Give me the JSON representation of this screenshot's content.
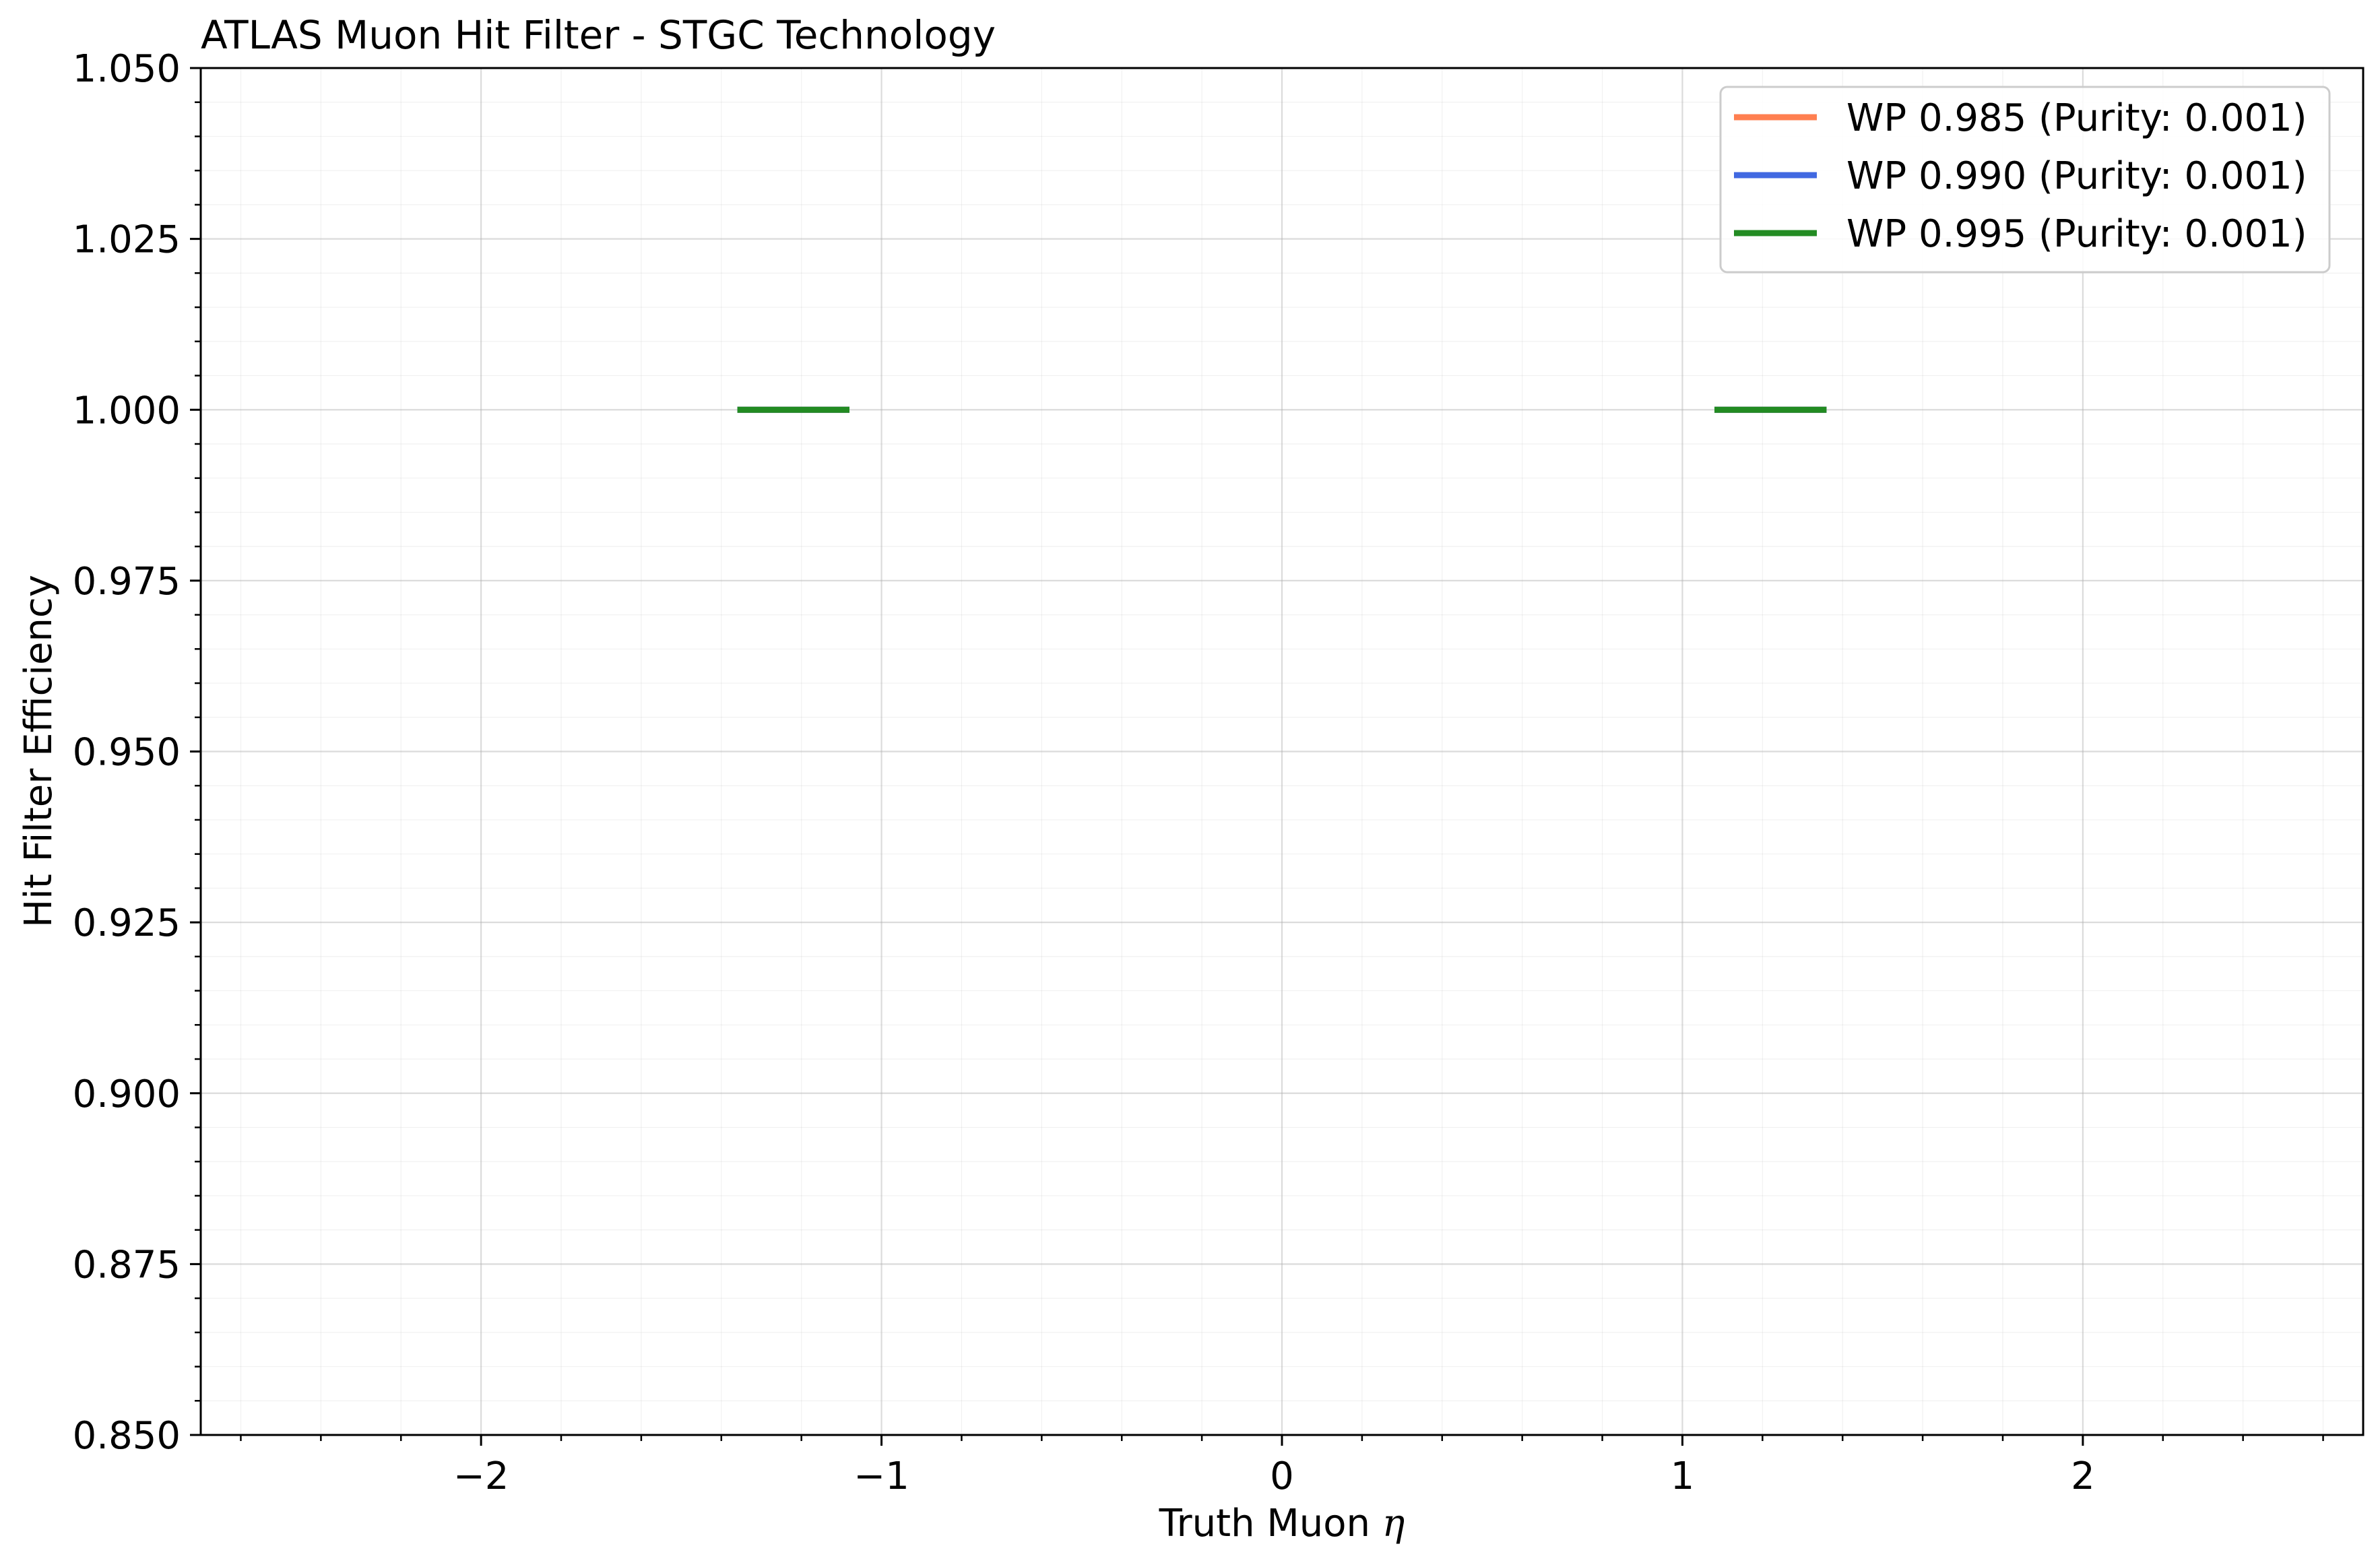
{
  "chart_data": {
    "type": "line",
    "title": "ATLAS Muon Hit Filter - STGC Technology",
    "xlabel": "Truth Muon η",
    "ylabel": "Hit Filter Efficiency",
    "xlim": [
      -2.7,
      2.7
    ],
    "ylim": [
      0.85,
      1.05
    ],
    "x_ticks": [
      -2,
      -1,
      0,
      1,
      2
    ],
    "x_tick_labels": [
      "−2",
      "−1",
      "0",
      "1",
      "2"
    ],
    "y_ticks": [
      0.85,
      0.875,
      0.9,
      0.925,
      0.95,
      0.975,
      1.0,
      1.025,
      1.05
    ],
    "y_tick_labels": [
      "0.850",
      "0.875",
      "0.900",
      "0.925",
      "0.950",
      "0.975",
      "1.000",
      "1.025",
      "1.050"
    ],
    "grid": true,
    "legend_position": "top-right",
    "series": [
      {
        "name": "WP 0.985 (Purity: 0.001)",
        "color": "#ff7f50",
        "segments": [
          {
            "x": [
              -1.36,
              -1.08
            ],
            "y": [
              1.0,
              1.0
            ]
          },
          {
            "x": [
              1.08,
              1.36
            ],
            "y": [
              1.0,
              1.0
            ]
          }
        ]
      },
      {
        "name": "WP 0.990 (Purity: 0.001)",
        "color": "#4169e1",
        "segments": [
          {
            "x": [
              -1.36,
              -1.08
            ],
            "y": [
              1.0,
              1.0
            ]
          },
          {
            "x": [
              1.08,
              1.36
            ],
            "y": [
              1.0,
              1.0
            ]
          }
        ]
      },
      {
        "name": "WP 0.995 (Purity: 0.001)",
        "color": "#228b22",
        "segments": [
          {
            "x": [
              -1.36,
              -1.08
            ],
            "y": [
              1.0,
              1.0
            ]
          },
          {
            "x": [
              1.08,
              1.36
            ],
            "y": [
              1.0,
              1.0
            ]
          }
        ]
      }
    ]
  }
}
